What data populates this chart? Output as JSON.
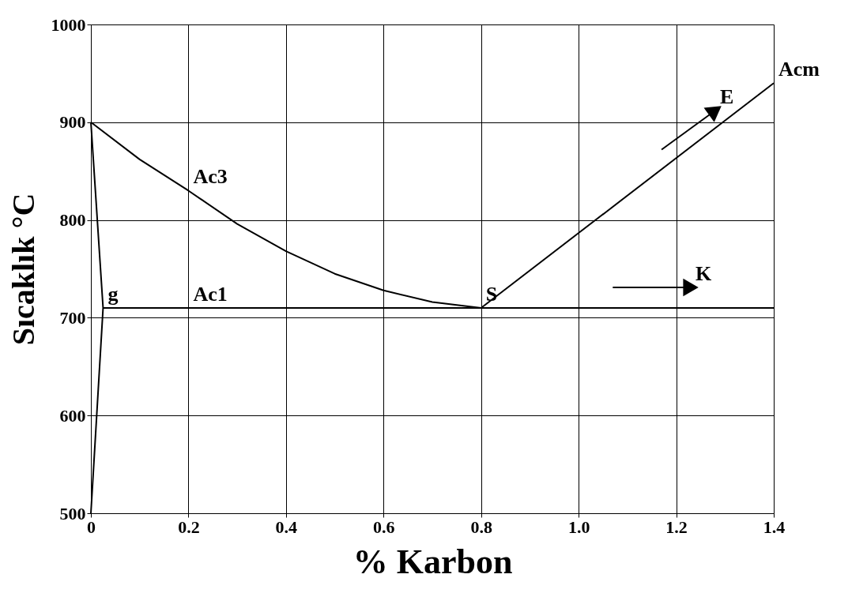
{
  "chart_data": {
    "type": "line",
    "xlabel": "% Karbon",
    "ylabel": "Sıcaklık °C",
    "xlim": [
      0,
      1.4
    ],
    "ylim": [
      500,
      1000
    ],
    "xticks": [
      0,
      0.2,
      0.4,
      0.6,
      0.8,
      {
        "value": 1.0,
        "label": "1.0"
      },
      1.2,
      1.4
    ],
    "yticks": [
      500,
      600,
      700,
      800,
      900,
      1000
    ],
    "grid": true,
    "marker": "none",
    "line_style": "solid",
    "series": [
      {
        "color": "#000000",
        "x": [
          0,
          0.1,
          0.2,
          0.3,
          0.4,
          0.5,
          0.6,
          0.7,
          0.8
        ],
        "values": [
          900,
          862,
          830,
          796,
          768,
          745,
          728,
          716,
          710
        ]
      },
      {
        "color": "#000000",
        "x": [
          0,
          0.025,
          0
        ],
        "values": [
          900,
          710,
          500
        ]
      },
      {
        "color": "#000000",
        "x": [
          0.025,
          1.4
        ],
        "values": [
          710,
          710
        ]
      },
      {
        "color": "#000000",
        "x": [
          0.8,
          1.4
        ],
        "values": [
          710,
          940
        ]
      },
      {
        "color": "#000000",
        "marker": "triangle",
        "x": [
          1.17,
          1.28
        ],
        "values": [
          872,
          912
        ]
      },
      {
        "color": "#000000",
        "marker": "triangle",
        "x": [
          1.07,
          1.23
        ],
        "values": [
          731,
          731
        ]
      }
    ],
    "annotations": [
      {
        "text": "Ac3",
        "x": 0.2,
        "y": 830
      },
      {
        "text": "g",
        "x": 0.025,
        "y": 710
      },
      {
        "text": "Ac1",
        "x": 0.2,
        "y": 710
      },
      {
        "text": "S",
        "x": 0.8,
        "y": 710
      },
      {
        "text": "E",
        "x": 1.28,
        "y": 912
      },
      {
        "text": "Acm",
        "x": 1.4,
        "y": 940
      },
      {
        "text": "K",
        "x": 1.23,
        "y": 731
      }
    ]
  }
}
